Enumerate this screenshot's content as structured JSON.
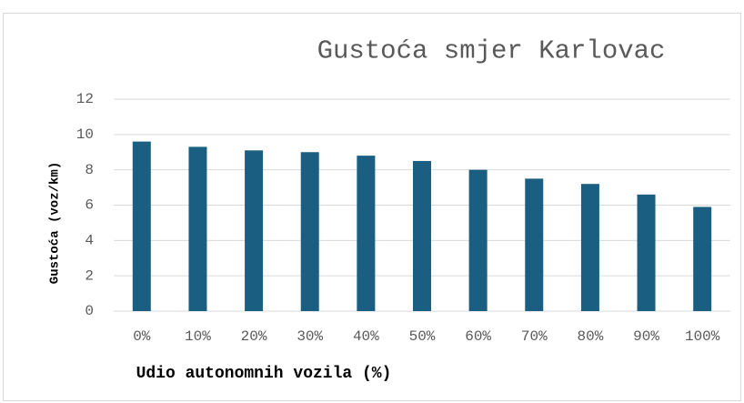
{
  "chart_data": {
    "type": "bar",
    "title": "Gustoća smjer Karlovac",
    "x_label": "Udio autonomnih vozila (%)",
    "y_label": "Gustoća (voz/km)",
    "categories": [
      "0%",
      "10%",
      "20%",
      "30%",
      "40%",
      "50%",
      "60%",
      "70%",
      "80%",
      "90%",
      "100%"
    ],
    "values": [
      9.6,
      9.3,
      9.1,
      9.0,
      8.8,
      8.5,
      8.0,
      7.5,
      7.2,
      6.6,
      5.9
    ],
    "color": "#1a5f82",
    "ylim": [
      0,
      12
    ],
    "yticks": [
      0,
      2,
      4,
      6,
      8,
      10,
      12
    ],
    "grid": true
  }
}
